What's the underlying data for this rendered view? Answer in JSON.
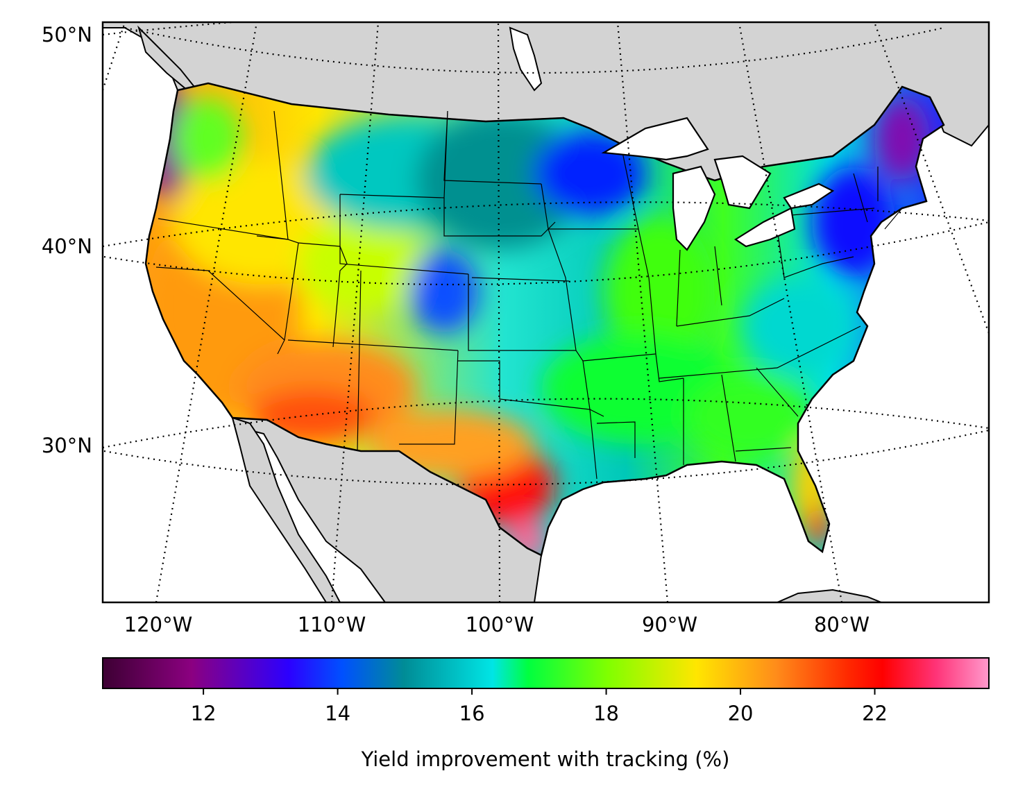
{
  "map": {
    "lat_labels": [
      "50°N",
      "40°N",
      "30°N"
    ],
    "lon_labels": [
      "120°W",
      "110°W",
      "100°W",
      "90°W",
      "80°W"
    ],
    "background_land_color": "#d3d3d3",
    "water_color": "#ffffff"
  },
  "colorbar": {
    "label": "Yield improvement with tracking (%)",
    "ticks": [
      "12",
      "14",
      "16",
      "18",
      "20",
      "22"
    ],
    "tick_values": [
      12,
      14,
      16,
      18,
      20,
      22
    ],
    "range": [
      10.5,
      23.7
    ],
    "colormap": "gist_ncar-like",
    "stops": [
      "#3d0033",
      "#8b0080",
      "#2c00ff",
      "#0050ff",
      "#008c96",
      "#00e5e5",
      "#00ff40",
      "#80ff00",
      "#ffe600",
      "#ff8c1a",
      "#ff0000",
      "#ff99cc"
    ]
  }
}
